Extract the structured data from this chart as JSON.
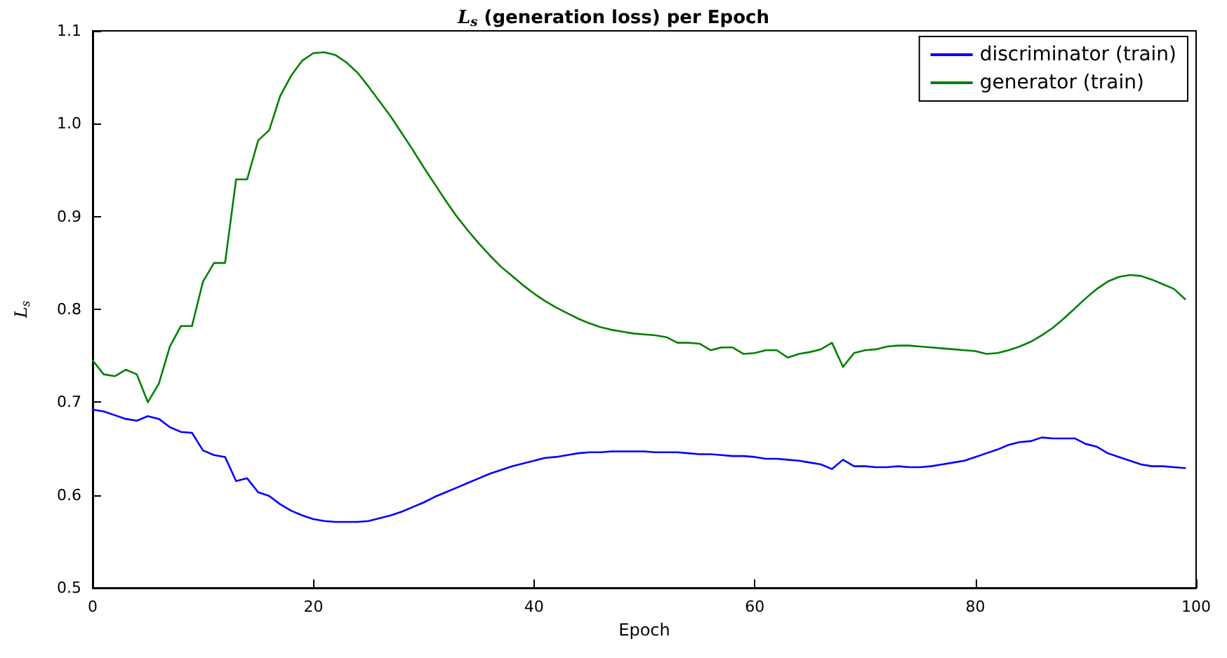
{
  "chart_data": {
    "type": "line",
    "title": "L$_{s}$ (generation loss) per Epoch",
    "xlabel": "Epoch",
    "ylabel": "L$_{s}$",
    "x": [
      0,
      1,
      2,
      3,
      4,
      5,
      6,
      7,
      8,
      9,
      10,
      11,
      12,
      13,
      14,
      15,
      16,
      17,
      18,
      19,
      20,
      21,
      22,
      23,
      24,
      25,
      26,
      27,
      28,
      29,
      30,
      31,
      32,
      33,
      34,
      35,
      36,
      37,
      38,
      39,
      40,
      41,
      42,
      43,
      44,
      45,
      46,
      47,
      48,
      49,
      50,
      51,
      52,
      53,
      54,
      55,
      56,
      57,
      58,
      59,
      60,
      61,
      62,
      63,
      64,
      65,
      66,
      67,
      68,
      69,
      70,
      71,
      72,
      73,
      74,
      75,
      76,
      77,
      78,
      79,
      80,
      81,
      82,
      83,
      84,
      85,
      86,
      87,
      88,
      89,
      90,
      91,
      92,
      93,
      94,
      95,
      96,
      97,
      98,
      99
    ],
    "series": [
      {
        "name": "discriminator (train)",
        "color": "#0000ff",
        "values": [
          0.692,
          0.69,
          0.686,
          0.682,
          0.68,
          0.685,
          0.682,
          0.673,
          0.668,
          0.667,
          0.648,
          0.643,
          0.641,
          0.615,
          0.618,
          0.603,
          0.599,
          0.59,
          0.583,
          0.578,
          0.574,
          0.572,
          0.571,
          0.571,
          0.571,
          0.572,
          0.575,
          0.578,
          0.582,
          0.587,
          0.592,
          0.598,
          0.603,
          0.608,
          0.613,
          0.618,
          0.623,
          0.627,
          0.631,
          0.634,
          0.637,
          0.64,
          0.641,
          0.643,
          0.645,
          0.646,
          0.646,
          0.647,
          0.647,
          0.647,
          0.647,
          0.646,
          0.646,
          0.646,
          0.645,
          0.644,
          0.644,
          0.643,
          0.642,
          0.642,
          0.641,
          0.639,
          0.639,
          0.638,
          0.637,
          0.635,
          0.633,
          0.628,
          0.638,
          0.631,
          0.631,
          0.63,
          0.63,
          0.631,
          0.63,
          0.63,
          0.631,
          0.633,
          0.635,
          0.637,
          0.641,
          0.645,
          0.649,
          0.654,
          0.657,
          0.658,
          0.662,
          0.661,
          0.661,
          0.661,
          0.655,
          0.652,
          0.645,
          0.641,
          0.637,
          0.633,
          0.631,
          0.631,
          0.63,
          0.629
        ]
      },
      {
        "name": "generator (train)",
        "color": "#008000",
        "values": [
          0.745,
          0.73,
          0.728,
          0.735,
          0.73,
          0.7,
          0.72,
          0.76,
          0.782,
          0.782,
          0.83,
          0.85,
          0.85,
          0.94,
          0.94,
          0.982,
          0.993,
          1.03,
          1.052,
          1.068,
          1.076,
          1.077,
          1.074,
          1.066,
          1.055,
          1.04,
          1.024,
          1.008,
          0.99,
          0.972,
          0.953,
          0.935,
          0.917,
          0.9,
          0.885,
          0.871,
          0.858,
          0.846,
          0.836,
          0.826,
          0.817,
          0.809,
          0.802,
          0.796,
          0.79,
          0.785,
          0.781,
          0.778,
          0.776,
          0.774,
          0.773,
          0.772,
          0.77,
          0.764,
          0.764,
          0.763,
          0.756,
          0.759,
          0.759,
          0.752,
          0.753,
          0.756,
          0.756,
          0.748,
          0.752,
          0.754,
          0.757,
          0.764,
          0.738,
          0.753,
          0.756,
          0.757,
          0.76,
          0.761,
          0.761,
          0.76,
          0.759,
          0.758,
          0.757,
          0.756,
          0.755,
          0.752,
          0.753,
          0.756,
          0.76,
          0.765,
          0.772,
          0.78,
          0.79,
          0.801,
          0.812,
          0.822,
          0.83,
          0.835,
          0.837,
          0.836,
          0.832,
          0.827,
          0.822,
          0.811
        ]
      }
    ],
    "xlim": [
      0,
      100
    ],
    "xticks": [
      0,
      20,
      40,
      60,
      80,
      100
    ],
    "ylim": [
      0.5,
      1.1
    ],
    "yticks": [
      0.5,
      0.6,
      0.7,
      0.8,
      0.9,
      {
        "value": 1,
        "label": "1.0"
      },
      1.1
    ],
    "grid": false,
    "legend": "top right",
    "marker": "none",
    "line_style": "solid"
  }
}
